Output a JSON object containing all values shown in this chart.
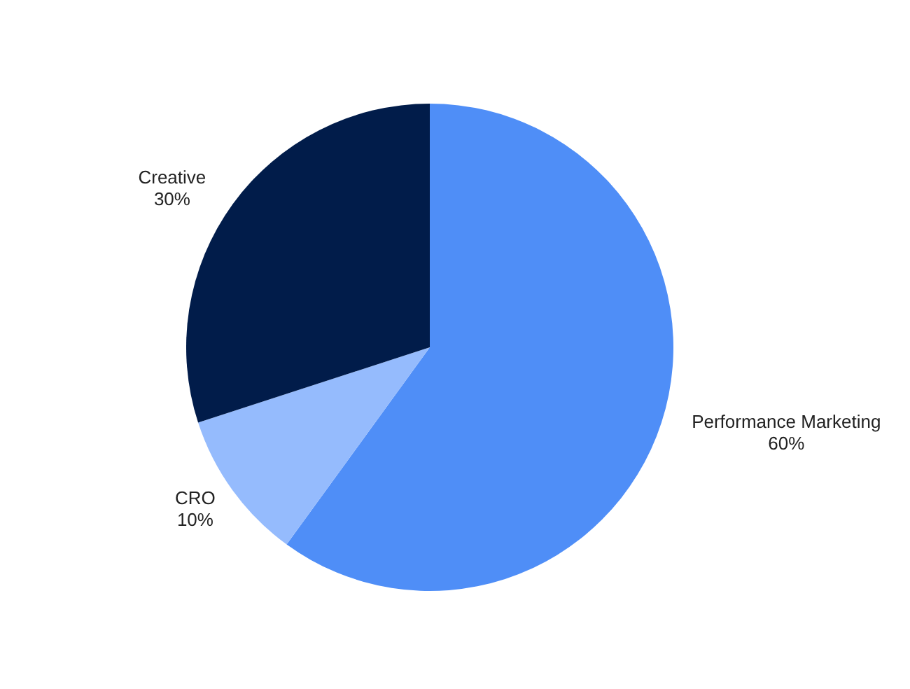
{
  "chart_data": {
    "type": "pie",
    "categories": [
      "Performance Marketing",
      "CRO",
      "Creative"
    ],
    "values": [
      60,
      10,
      30
    ],
    "value_labels": [
      "60%",
      "10%",
      "30%"
    ],
    "colors": [
      "#4f8ef7",
      "#95bbfd",
      "#011c4a"
    ]
  }
}
